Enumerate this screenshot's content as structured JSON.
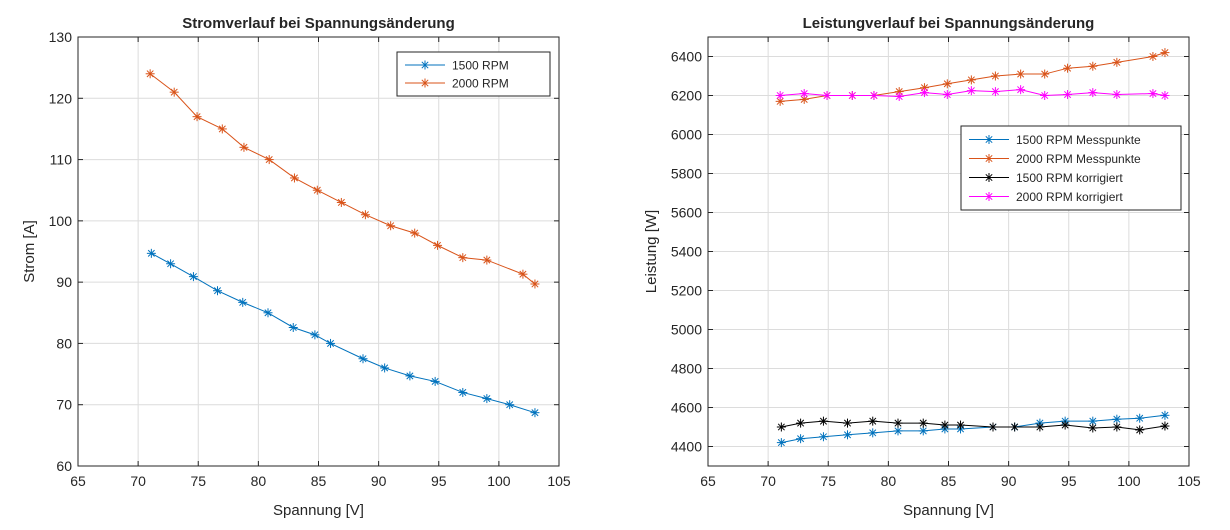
{
  "chart_data": [
    {
      "type": "line",
      "title": "Stromverlauf bei Spannungsänderung",
      "xlabel": "Spannung [V]",
      "ylabel": "Strom [A]",
      "xlim": [
        65,
        105
      ],
      "ylim": [
        60,
        130
      ],
      "xticks": [
        65,
        70,
        75,
        80,
        85,
        90,
        95,
        100,
        105
      ],
      "yticks": [
        60,
        70,
        80,
        90,
        100,
        110,
        120,
        130
      ],
      "grid": true,
      "legend_position": "top-right",
      "series": [
        {
          "name": "1500 RPM",
          "color": "#0072BD",
          "marker": "asterisk",
          "x": [
            71.1,
            72.7,
            74.6,
            76.6,
            78.7,
            80.8,
            82.9,
            84.7,
            86.0,
            88.7,
            90.5,
            92.6,
            94.7,
            97.0,
            99.0,
            100.9,
            103.0
          ],
          "y": [
            94.7,
            93.0,
            90.9,
            88.6,
            86.7,
            85.0,
            82.6,
            81.4,
            80.0,
            77.5,
            76.0,
            74.7,
            73.8,
            72.0,
            71.0,
            70.0,
            68.7
          ]
        },
        {
          "name": "2000 RPM",
          "color": "#D95319",
          "marker": "asterisk",
          "x": [
            71.0,
            73.0,
            74.9,
            77.0,
            78.8,
            80.9,
            83.0,
            84.9,
            86.9,
            88.9,
            91.0,
            93.0,
            94.9,
            97.0,
            99.0,
            102.0,
            103.0
          ],
          "y": [
            124.0,
            121.0,
            117.0,
            115.0,
            112.0,
            110.0,
            107.0,
            105.0,
            103.0,
            101.0,
            99.2,
            98.0,
            96.0,
            94.0,
            93.6,
            91.3,
            89.7
          ]
        }
      ]
    },
    {
      "type": "line",
      "title": "Leistungverlauf bei Spannungsänderung",
      "xlabel": "Spannung [V]",
      "ylabel": "Leistung [W]",
      "xlim": [
        65,
        105
      ],
      "ylim": [
        4300,
        6500
      ],
      "xticks": [
        65,
        70,
        75,
        80,
        85,
        90,
        95,
        100,
        105
      ],
      "yticks": [
        4400,
        4600,
        4800,
        5000,
        5200,
        5400,
        5600,
        5800,
        6000,
        6200,
        6400
      ],
      "grid": true,
      "legend_position": "right",
      "series": [
        {
          "name": "1500 RPM Messpunkte",
          "color": "#0072BD",
          "marker": "asterisk",
          "x": [
            71.1,
            72.7,
            74.6,
            76.6,
            78.7,
            80.8,
            82.9,
            84.7,
            86.0,
            88.7,
            90.5,
            92.6,
            94.7,
            97.0,
            99.0,
            100.9,
            103.0
          ],
          "y": [
            4420,
            4440,
            4450,
            4460,
            4470,
            4480,
            4480,
            4490,
            4490,
            4500,
            4500,
            4520,
            4530,
            4530,
            4540,
            4545,
            4560
          ]
        },
        {
          "name": "2000 RPM Messpunkte",
          "color": "#D95319",
          "marker": "asterisk",
          "x": [
            71.0,
            73.0,
            74.9,
            77.0,
            78.8,
            80.9,
            83.0,
            84.9,
            86.9,
            88.9,
            91.0,
            93.0,
            94.9,
            97.0,
            99.0,
            102.0,
            103.0
          ],
          "y": [
            6170,
            6180,
            6200,
            6200,
            6200,
            6220,
            6240,
            6260,
            6280,
            6300,
            6310,
            6310,
            6340,
            6350,
            6370,
            6400,
            6420
          ]
        },
        {
          "name": "1500 RPM korrigiert",
          "color": "#000000",
          "marker": "asterisk",
          "x": [
            71.1,
            72.7,
            74.6,
            76.6,
            78.7,
            80.8,
            82.9,
            84.7,
            86.0,
            88.7,
            90.5,
            92.6,
            94.7,
            97.0,
            99.0,
            100.9,
            103.0
          ],
          "y": [
            4500,
            4520,
            4530,
            4520,
            4530,
            4520,
            4520,
            4510,
            4510,
            4500,
            4500,
            4500,
            4510,
            4495,
            4500,
            4485,
            4505
          ]
        },
        {
          "name": "2000 RPM korrigiert",
          "color": "#FF00FF",
          "marker": "asterisk",
          "x": [
            71.0,
            73.0,
            74.9,
            77.0,
            78.8,
            80.9,
            83.0,
            84.9,
            86.9,
            88.9,
            91.0,
            93.0,
            94.9,
            97.0,
            99.0,
            102.0,
            103.0
          ],
          "y": [
            6200,
            6210,
            6200,
            6200,
            6200,
            6195,
            6215,
            6205,
            6225,
            6220,
            6230,
            6200,
            6205,
            6215,
            6205,
            6210,
            6200
          ]
        }
      ]
    }
  ]
}
